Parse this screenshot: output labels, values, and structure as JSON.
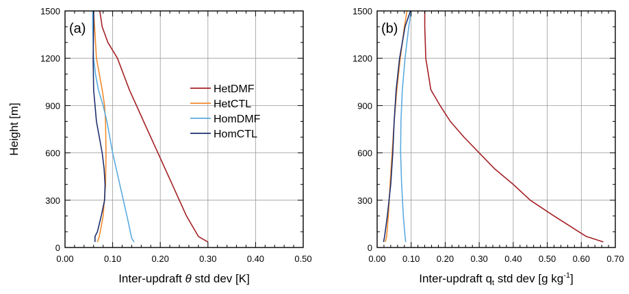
{
  "chart_data": [
    {
      "type": "line",
      "panel_label": "(a)",
      "xlabel_parts": {
        "pre": "Inter-updraft ",
        "sym": "θ",
        "post": " std dev [K]"
      },
      "ylabel": "Height [m]",
      "xlim": [
        0,
        0.5
      ],
      "ylim": [
        0,
        1500
      ],
      "xticks": [
        0,
        0.1,
        0.2,
        0.3,
        0.4,
        0.5
      ],
      "xtick_labels": [
        "0.00",
        "0.10",
        "0.20",
        "0.30",
        "0.40",
        "0.50"
      ],
      "yticks": [
        0,
        300,
        600,
        900,
        1200,
        1500
      ],
      "ytick_labels": [
        "0",
        "300",
        "600",
        "900",
        "1200",
        "1500"
      ],
      "grid": true,
      "legend": {
        "placement": "upper-center-right",
        "entries": [
          "HetDMF",
          "HetCTL",
          "HomDMF",
          "HomCTL"
        ]
      },
      "series": [
        {
          "name": "HetDMF",
          "color": "#a31f23",
          "x": [
            0.3,
            0.28,
            0.255,
            0.225,
            0.195,
            0.165,
            0.135,
            0.11,
            0.09,
            0.078,
            0.074,
            0.073
          ],
          "y": [
            35,
            70,
            200,
            400,
            600,
            800,
            1000,
            1200,
            1300,
            1400,
            1480,
            1500
          ]
        },
        {
          "name": "HetCTL",
          "color": "#f08a2c",
          "x": [
            0.068,
            0.072,
            0.08,
            0.085,
            0.086,
            0.085,
            0.083,
            0.078,
            0.072,
            0.066,
            0.062,
            0.06
          ],
          "y": [
            35,
            70,
            200,
            400,
            600,
            800,
            900,
            1000,
            1100,
            1200,
            1400,
            1500
          ]
        },
        {
          "name": "HomDMF",
          "color": "#5aabe0",
          "x": [
            0.145,
            0.14,
            0.13,
            0.115,
            0.1,
            0.088,
            0.08,
            0.07,
            0.064,
            0.06,
            0.058,
            0.058
          ],
          "y": [
            35,
            60,
            200,
            400,
            600,
            800,
            900,
            1000,
            1100,
            1200,
            1400,
            1500
          ]
        },
        {
          "name": "HomCTL",
          "color": "#1c2f6e",
          "x": [
            0.063,
            0.063,
            0.068,
            0.076,
            0.083,
            0.084,
            0.082,
            0.078,
            0.072,
            0.066,
            0.06,
            0.059,
            0.06,
            0.06
          ],
          "y": [
            35,
            70,
            100,
            200,
            300,
            400,
            500,
            600,
            700,
            800,
            1000,
            1200,
            1400,
            1500
          ]
        }
      ]
    },
    {
      "type": "line",
      "panel_label": "(b)",
      "xlabel_parts": {
        "pre": "Inter-updraft q",
        "sub": "t",
        "mid": " std dev [g kg",
        "sup": "-1",
        "post": "]"
      },
      "xlim": [
        0,
        0.7
      ],
      "ylim": [
        0,
        1500
      ],
      "xticks": [
        0,
        0.1,
        0.2,
        0.3,
        0.4,
        0.5,
        0.6,
        0.7
      ],
      "xtick_labels": [
        "0.00",
        "0.10",
        "0.20",
        "0.30",
        "0.40",
        "0.50",
        "0.60",
        "0.70"
      ],
      "yticks": [
        0,
        300,
        600,
        900,
        1200,
        1500
      ],
      "ytick_labels": [
        "0",
        "300",
        "600",
        "900",
        "1200",
        "1500"
      ],
      "grid": true,
      "series": [
        {
          "name": "HetDMF",
          "color": "#a31f23",
          "x": [
            0.665,
            0.615,
            0.52,
            0.45,
            0.4,
            0.345,
            0.3,
            0.255,
            0.215,
            0.185,
            0.158,
            0.143,
            0.14,
            0.14
          ],
          "y": [
            35,
            70,
            200,
            300,
            400,
            500,
            600,
            700,
            800,
            900,
            1000,
            1200,
            1400,
            1500
          ]
        },
        {
          "name": "HetCTL",
          "color": "#f08a2c",
          "x": [
            0.024,
            0.028,
            0.033,
            0.038,
            0.044,
            0.05,
            0.058,
            0.068,
            0.08,
            0.088
          ],
          "y": [
            35,
            70,
            200,
            400,
            600,
            800,
            1000,
            1200,
            1400,
            1500
          ]
        },
        {
          "name": "HomDMF",
          "color": "#5aabe0",
          "x": [
            0.084,
            0.082,
            0.077,
            0.072,
            0.069,
            0.07,
            0.074,
            0.082,
            0.093,
            0.1
          ],
          "y": [
            35,
            70,
            200,
            400,
            600,
            800,
            1000,
            1200,
            1400,
            1500
          ]
        },
        {
          "name": "HomCTL",
          "color": "#1c2f6e",
          "x": [
            0.019,
            0.022,
            0.03,
            0.04,
            0.046,
            0.05,
            0.056,
            0.066,
            0.082,
            0.098
          ],
          "y": [
            35,
            70,
            200,
            400,
            600,
            800,
            1000,
            1200,
            1400,
            1500
          ]
        }
      ]
    }
  ]
}
